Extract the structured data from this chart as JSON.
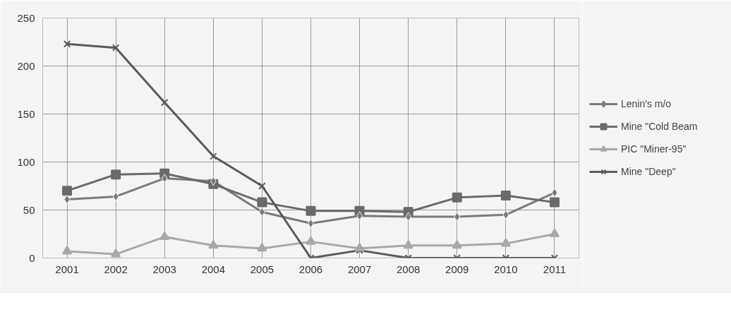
{
  "chart_data": {
    "type": "line",
    "categories": [
      "2001",
      "2002",
      "2003",
      "2004",
      "2005",
      "2006",
      "2007",
      "2008",
      "2009",
      "2010",
      "2011"
    ],
    "series": [
      {
        "name": "Lenin's m/o",
        "color": "#7a7a7a",
        "marker": "diamond",
        "values": [
          61,
          64,
          83,
          80,
          48,
          36,
          44,
          43,
          43,
          45,
          68
        ]
      },
      {
        "name": "Mine \"Cold Beam",
        "color": "#6a6a6a",
        "marker": "square",
        "values": [
          70,
          87,
          88,
          77,
          58,
          49,
          49,
          48,
          63,
          65,
          58
        ]
      },
      {
        "name": "PIC \"Miner-95\"",
        "color": "#a8a8a8",
        "marker": "triangle",
        "values": [
          7,
          4,
          22,
          13,
          10,
          17,
          10,
          13,
          13,
          15,
          25
        ]
      },
      {
        "name": "Mine \"Deep\"",
        "color": "#5a5a5a",
        "marker": "cross",
        "values": [
          223,
          219,
          162,
          106,
          75,
          0,
          8,
          0,
          0,
          0,
          0
        ]
      }
    ],
    "ylim": [
      0,
      250
    ],
    "yticks": [
      0,
      50,
      100,
      150,
      200,
      250
    ],
    "grid": true,
    "legend": "right"
  }
}
